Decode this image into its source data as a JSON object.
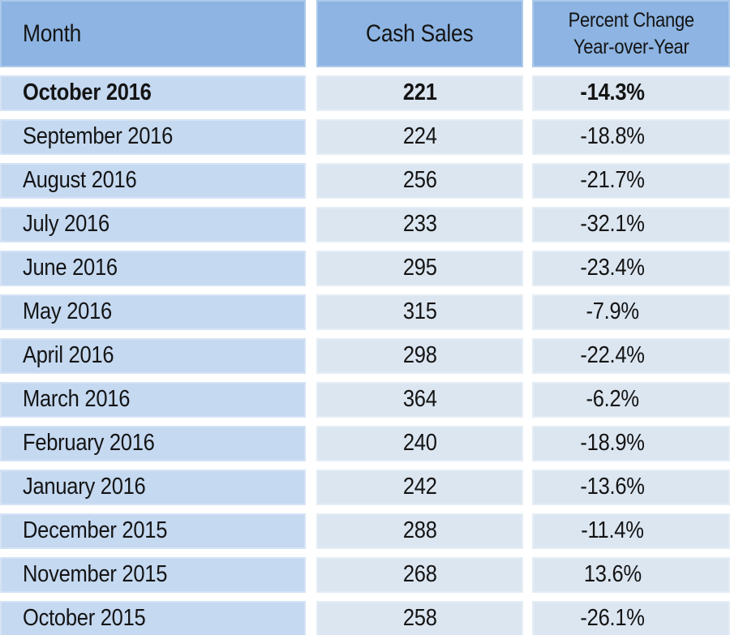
{
  "table": {
    "header": {
      "month": "Month",
      "cash_sales": "Cash Sales",
      "percent_line1": "Percent Change",
      "percent_line2": "Year-over-Year"
    },
    "rows": [
      {
        "month": "October 2016",
        "cash_sales": "221",
        "percent_change": "-14.3%",
        "bold": true
      },
      {
        "month": "September 2016",
        "cash_sales": "224",
        "percent_change": "-18.8%",
        "bold": false
      },
      {
        "month": "August 2016",
        "cash_sales": "256",
        "percent_change": "-21.7%",
        "bold": false
      },
      {
        "month": "July 2016",
        "cash_sales": "233",
        "percent_change": "-32.1%",
        "bold": false
      },
      {
        "month": "June 2016",
        "cash_sales": "295",
        "percent_change": "-23.4%",
        "bold": false
      },
      {
        "month": "May 2016",
        "cash_sales": "315",
        "percent_change": "-7.9%",
        "bold": false
      },
      {
        "month": "April 2016",
        "cash_sales": "298",
        "percent_change": "-22.4%",
        "bold": false
      },
      {
        "month": "March 2016",
        "cash_sales": "364",
        "percent_change": "-6.2%",
        "bold": false
      },
      {
        "month": "February 2016",
        "cash_sales": "240",
        "percent_change": "-18.9%",
        "bold": false
      },
      {
        "month": "January 2016",
        "cash_sales": "242",
        "percent_change": "-13.6%",
        "bold": false
      },
      {
        "month": "December 2015",
        "cash_sales": "288",
        "percent_change": "-11.4%",
        "bold": false
      },
      {
        "month": "November 2015",
        "cash_sales": "268",
        "percent_change": "13.6%",
        "bold": false
      },
      {
        "month": "October 2015",
        "cash_sales": "258",
        "percent_change": "-26.1%",
        "bold": false
      }
    ]
  },
  "colors": {
    "header_bg": "#8db4e2",
    "month_cell_bg": "#c5d9f1",
    "value_cell_bg": "#dce6f1",
    "gap": "#ffffff",
    "text": "#141414"
  },
  "chart_data": {
    "type": "table",
    "columns": [
      "Month",
      "Cash Sales",
      "Percent Change Year-over-Year"
    ],
    "rows": [
      [
        "October 2016",
        221,
        "-14.3%"
      ],
      [
        "September 2016",
        224,
        "-18.8%"
      ],
      [
        "August 2016",
        256,
        "-21.7%"
      ],
      [
        "July 2016",
        233,
        "-32.1%"
      ],
      [
        "June 2016",
        295,
        "-23.4%"
      ],
      [
        "May 2016",
        315,
        "-7.9%"
      ],
      [
        "April 2016",
        298,
        "-22.4%"
      ],
      [
        "March 2016",
        364,
        "-6.2%"
      ],
      [
        "February 2016",
        240,
        "-18.9%"
      ],
      [
        "January 2016",
        242,
        "-13.6%"
      ],
      [
        "December 2015",
        288,
        "-11.4%"
      ],
      [
        "November 2015",
        268,
        "13.6%"
      ],
      [
        "October 2015",
        258,
        "-26.1%"
      ]
    ],
    "cash_sales_values": [
      221,
      224,
      256,
      233,
      295,
      315,
      298,
      364,
      240,
      242,
      288,
      268,
      258
    ],
    "percent_change_values": [
      -14.3,
      -18.8,
      -21.7,
      -32.1,
      -23.4,
      -7.9,
      -22.4,
      -6.2,
      -18.9,
      -13.6,
      -11.4,
      13.6,
      -26.1
    ],
    "notes": "First row (October 2016) emphasized in bold; legend/grid not applicable; values read directly from table cells."
  }
}
